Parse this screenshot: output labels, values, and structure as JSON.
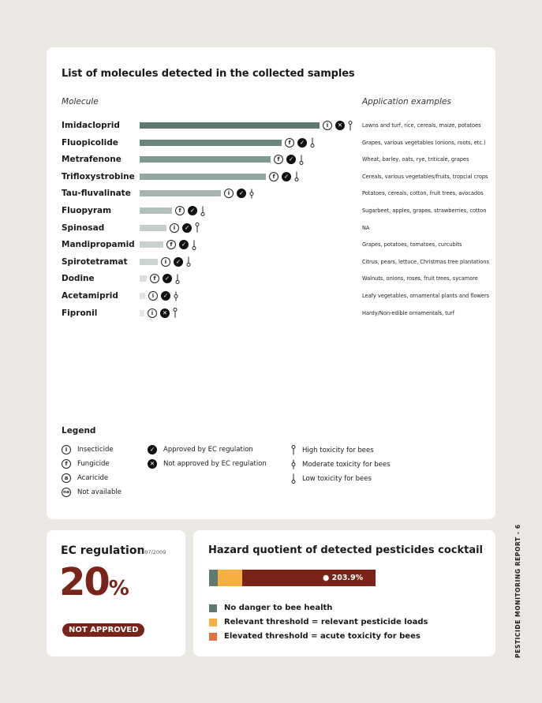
{
  "main": {
    "title": "List of molecules detected in the collected samples",
    "col_molecule": "Molecule",
    "col_application": "Application examples",
    "molecules": [
      {
        "name": "Imidacloprid",
        "bar": 1.0,
        "color": "#5e7a72",
        "type": "i",
        "approved": false,
        "tox": "high",
        "app": "Lawns and turf, rice, cereals, maize, potatoes"
      },
      {
        "name": "Fluopicolide",
        "bar": 0.79,
        "color": "#6a857d",
        "type": "f",
        "approved": true,
        "tox": "low",
        "app": "Grapes, various vegetables (onions, roots, etc.)"
      },
      {
        "name": "Metrafenone",
        "bar": 0.73,
        "color": "#809a93",
        "type": "f",
        "approved": true,
        "tox": "low",
        "app": "Wheat, barley, oats, rye, triticale, grapes"
      },
      {
        "name": "Trifloxystrobine",
        "bar": 0.7,
        "color": "#8fa7a0",
        "type": "f",
        "approved": true,
        "tox": "low",
        "app": "Cereals, various vegetables/fruits, tropcial crops"
      },
      {
        "name": "Tau-fluvalinate",
        "bar": 0.45,
        "color": "#a4b5b1",
        "type": "i",
        "approved": true,
        "tox": "moderate",
        "app": "Potatoes, cereals, cotton, fruit trees, avocados"
      },
      {
        "name": "Fluopyram",
        "bar": 0.18,
        "color": "#b2c0bd",
        "type": "f",
        "approved": true,
        "tox": "low",
        "app": "Sugarbeet, apples, grapes, strawberries, cotton"
      },
      {
        "name": "Spinosad",
        "bar": 0.15,
        "color": "#c3cdcb",
        "type": "i",
        "approved": true,
        "tox": "high",
        "app": "NA"
      },
      {
        "name": "Mandipropamid",
        "bar": 0.13,
        "color": "#c8d1cf",
        "type": "f",
        "approved": true,
        "tox": "low",
        "app": "Grapes, potatoes, tomatoes, curcubits"
      },
      {
        "name": "Spirotetramat",
        "bar": 0.1,
        "color": "#ccd4d2",
        "type": "i",
        "approved": true,
        "tox": "low",
        "app": "Citrus, pears, lettuce, Christmas tree plantations"
      },
      {
        "name": "Dodine",
        "bar": 0.04,
        "color": "#dcdfde",
        "type": "f",
        "approved": true,
        "tox": "low",
        "app": "Walnuts, onions, roses, fruit trees, sycamore"
      },
      {
        "name": "Acetamiprid",
        "bar": 0.03,
        "color": "#e0e2e1",
        "type": "i",
        "approved": true,
        "tox": "moderate",
        "app": "Leafy vegetables, ornamental plants and flowers"
      },
      {
        "name": "Fipronil",
        "bar": 0.02,
        "color": "#e4e5e4",
        "type": "i",
        "approved": false,
        "tox": "high",
        "app": "Hardy/Non-edible ornamentals, turf"
      }
    ]
  },
  "legend": {
    "title": "Legend",
    "insecticide": "Insecticide",
    "fungicide": "Fungicide",
    "acaricide": "Acaricide",
    "na": "Not available",
    "na_symbol": "na",
    "approved": "Approved by EC regulation",
    "not_approved": "Not approved by EC regulation",
    "high": "High toxicity for bees",
    "moderate": "Moderate toxicity for bees",
    "low": "Low toxicity for bees"
  },
  "ec": {
    "title": "EC regulation",
    "ref": "1107/2009",
    "value": "20",
    "unit": "%",
    "badge": "NOT APPROVED"
  },
  "hazard": {
    "title": "Hazard quotient of detected pesticides cocktail",
    "value_label": "● 203.9%",
    "segments": [
      {
        "fraction": 0.05,
        "color": "#5e7a72"
      },
      {
        "fraction": 0.15,
        "color": "#f5b041"
      },
      {
        "fraction": 0.8,
        "color": "#7a2419"
      }
    ],
    "legend": [
      {
        "label": "No danger to bee health",
        "color": "#5e7a72"
      },
      {
        "label": "Relevant threshold = relevant pesticide loads",
        "color": "#f5b041"
      },
      {
        "label": "Elevated threshold = acute toxicity for bees",
        "color": "#e0703f"
      }
    ]
  },
  "footer": {
    "side_text": "PESTICIDE MONITORING REPORT - 6"
  }
}
